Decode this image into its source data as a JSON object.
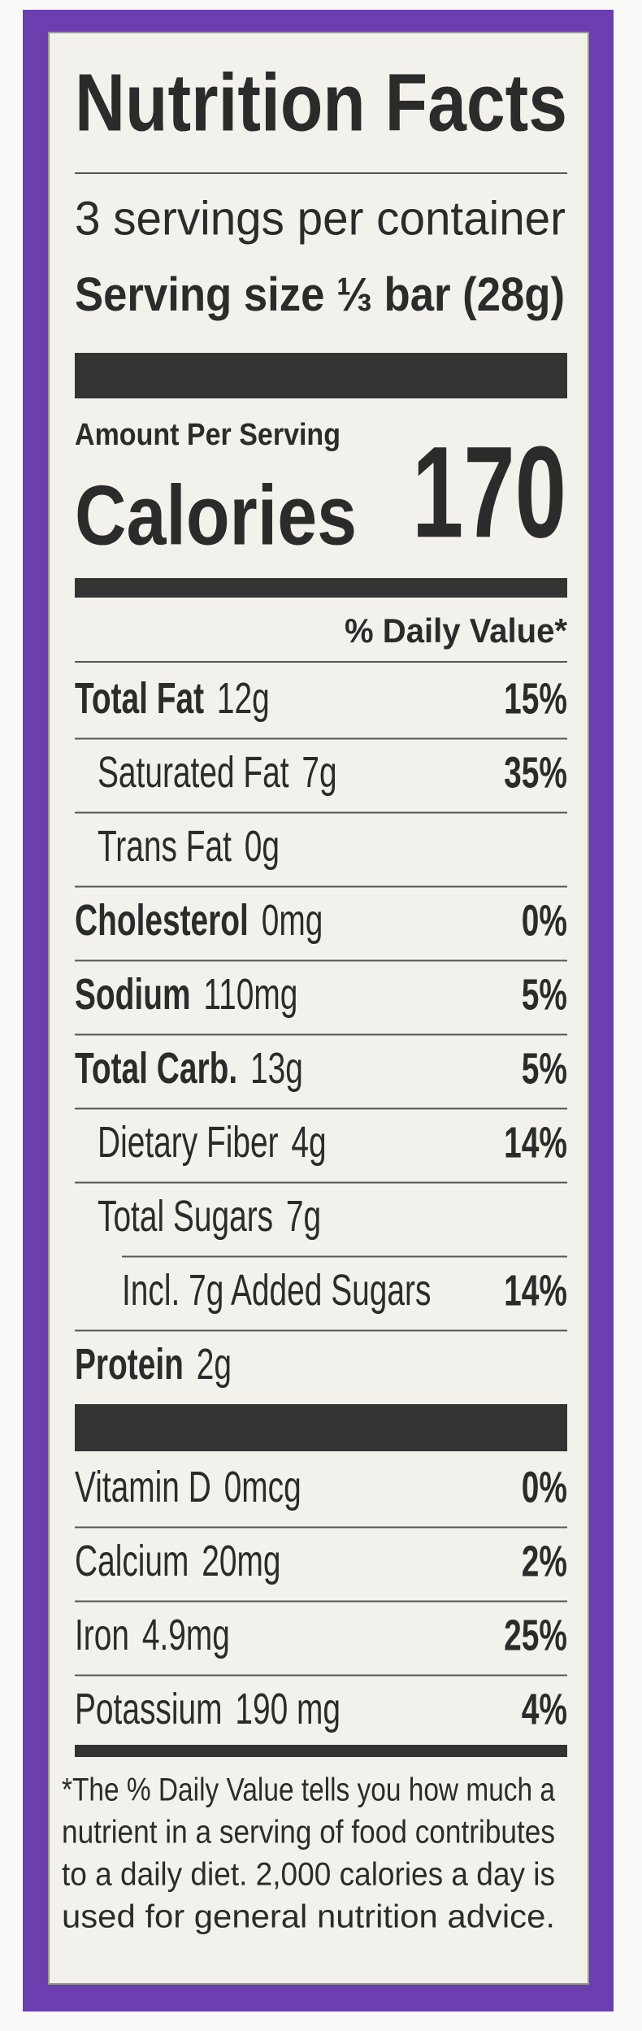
{
  "title": "Nutrition Facts",
  "servings": "3 servings per container",
  "serving_size": {
    "label": "Serving size",
    "value": "⅓ bar (28g)"
  },
  "amount_per_serving": "Amount Per Serving",
  "calories": {
    "label": "Calories",
    "value": "170"
  },
  "daily_value_header": "% Daily Value*",
  "nutrients": [
    {
      "name": "Total Fat",
      "amount": "12g",
      "dv": "15%",
      "bold": true,
      "indent": 0
    },
    {
      "name": "Saturated Fat",
      "amount": "7g",
      "dv": "35%",
      "bold": false,
      "indent": 1
    },
    {
      "name": "Trans Fat",
      "amount": "0g",
      "bold": false,
      "indent": 1
    },
    {
      "name": "Cholesterol",
      "amount": "0mg",
      "dv": "0%",
      "bold": true,
      "indent": 0
    },
    {
      "name": "Sodium",
      "amount": "110mg",
      "dv": "5%",
      "bold": true,
      "indent": 0
    },
    {
      "name": "Total Carb.",
      "amount": "13g",
      "dv": "5%",
      "bold": true,
      "indent": 0
    },
    {
      "name": "Dietary Fiber",
      "amount": "4g",
      "dv": "14%",
      "bold": false,
      "indent": 1
    },
    {
      "name": "Total Sugars",
      "amount": "7g",
      "bold": false,
      "indent": 1
    },
    {
      "name": "Incl. 7g Added Sugars",
      "dv": "14%",
      "bold": false,
      "indent": 2
    },
    {
      "name": "Protein",
      "amount": "2g",
      "bold": true,
      "indent": 0
    }
  ],
  "vitamins": [
    {
      "name": "Vitamin D",
      "amount": "0mcg",
      "dv": "0%"
    },
    {
      "name": "Calcium",
      "amount": "20mg",
      "dv": "2%"
    },
    {
      "name": "Iron",
      "amount": "4.9mg",
      "dv": "25%"
    },
    {
      "name": "Potassium",
      "amount": "190 mg",
      "dv": "4%"
    }
  ],
  "footnote": [
    "*The % Daily Value tells you how much a",
    "nutrient in a serving of food contributes",
    "to a daily diet. 2,000 calories a day is",
    "used for general nutrition advice."
  ]
}
